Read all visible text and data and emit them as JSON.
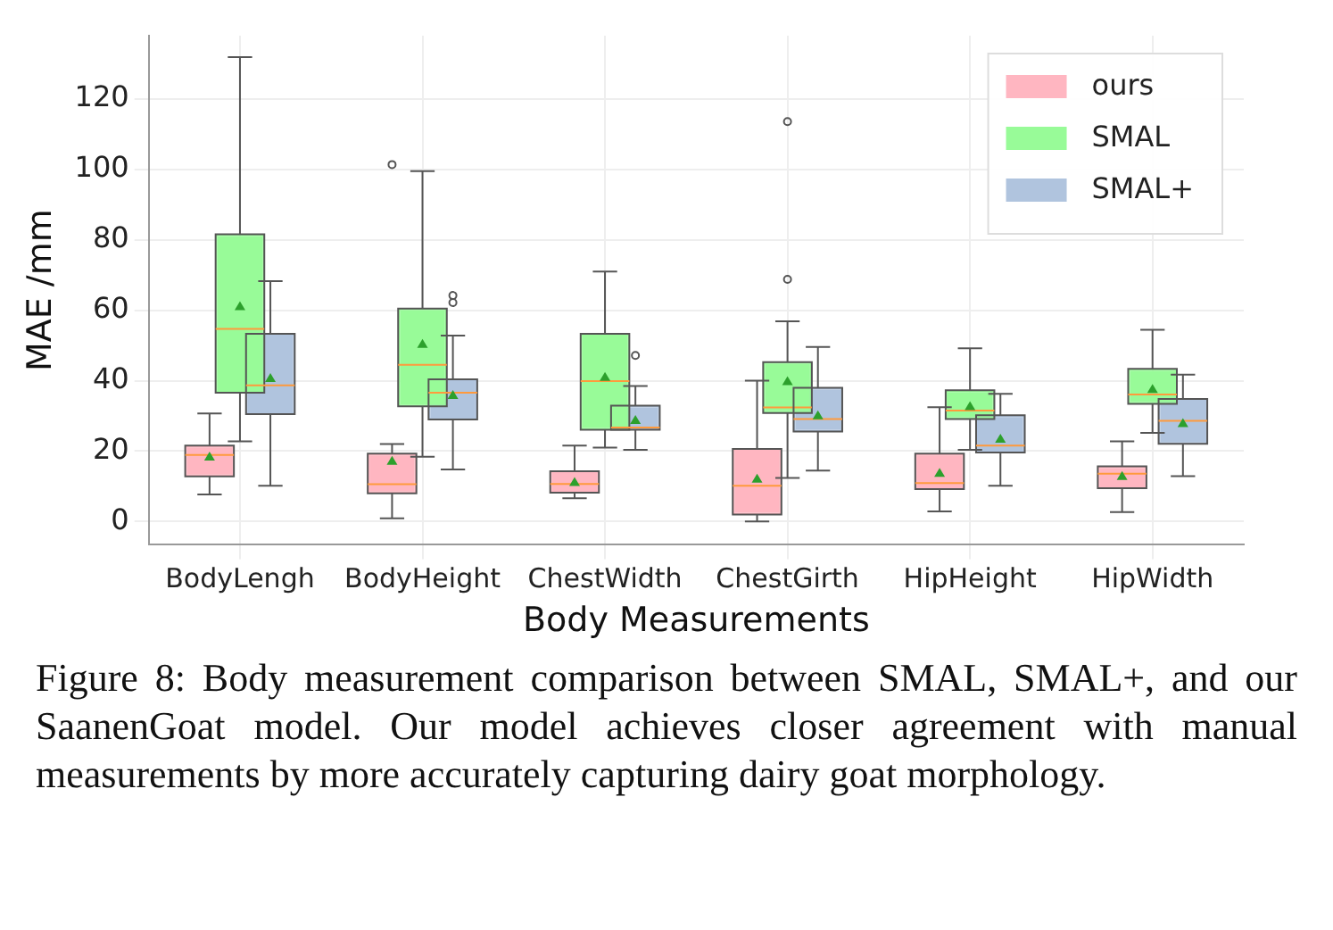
{
  "chart_data": {
    "type": "box",
    "xlabel": "Body Measurements",
    "ylabel": "MAE /mm",
    "categories": [
      "BodyLengh",
      "BodyHeight",
      "ChestWidth",
      "ChestGirth",
      "HipHeight",
      "HipWidth"
    ],
    "ylim": [
      -6.6,
      138
    ],
    "yticks": [
      0,
      20,
      40,
      60,
      80,
      100,
      120
    ],
    "grid": true,
    "legend": "top right",
    "series": [
      {
        "name": "ours",
        "color": "#ffb6c1",
        "boxes": [
          {
            "low": 7.7,
            "q1": 12.8,
            "median": 18.9,
            "q3": 21.6,
            "high": 30.7,
            "mean": 18.6
          },
          {
            "low": 0.9,
            "q1": 8,
            "median": 10.6,
            "q3": 19.3,
            "high": 22,
            "mean": 17.4,
            "outliers": [
              101.4
            ]
          },
          {
            "low": 6.6,
            "q1": 8.2,
            "median": 10.7,
            "q3": 14.3,
            "high": 21.6,
            "mean": 11.4
          },
          {
            "low": 0,
            "q1": 2,
            "median": 10.2,
            "q3": 20.6,
            "high": 40,
            "mean": 12.3
          },
          {
            "low": 2.9,
            "q1": 9.2,
            "median": 10.9,
            "q3": 19.3,
            "high": 32.5,
            "mean": 14
          },
          {
            "low": 2.7,
            "q1": 9.5,
            "median": 13.6,
            "q3": 15.7,
            "high": 22.8,
            "mean": 13.1
          }
        ]
      },
      {
        "name": "SMAL",
        "color": "#98fb98",
        "boxes": [
          {
            "low": 22.8,
            "q1": 36.6,
            "median": 54.7,
            "q3": 81.6,
            "high": 131.9,
            "mean": 61.3
          },
          {
            "low": 18.4,
            "q1": 32.7,
            "median": 44.5,
            "q3": 60.5,
            "high": 99.5,
            "mean": 50.6
          },
          {
            "low": 21,
            "q1": 26.1,
            "median": 39.9,
            "q3": 53.3,
            "high": 71,
            "mean": 41.2
          },
          {
            "low": 12.4,
            "q1": 30.8,
            "median": 32.4,
            "q3": 45.3,
            "high": 56.9,
            "mean": 40,
            "outliers": [
              68.8,
              113.6
            ]
          },
          {
            "low": 20.4,
            "q1": 29.1,
            "median": 31.5,
            "q3": 37.3,
            "high": 49.2,
            "mean": 32.9
          },
          {
            "low": 25.2,
            "q1": 33.4,
            "median": 36.1,
            "q3": 43.4,
            "high": 54.5,
            "mean": 37.8
          }
        ]
      },
      {
        "name": "SMAL+",
        "color": "#b0c4de",
        "boxes": [
          {
            "low": 10.2,
            "q1": 30.5,
            "median": 38.7,
            "q3": 53.3,
            "high": 68.3,
            "mean": 40.9
          },
          {
            "low": 14.8,
            "q1": 29,
            "median": 36.6,
            "q3": 40.4,
            "high": 52.8,
            "mean": 36.1,
            "outliers": [
              62.2,
              64.2
            ]
          },
          {
            "low": 20.4,
            "q1": 26.1,
            "median": 26.7,
            "q3": 32.9,
            "high": 38.5,
            "mean": 29,
            "outliers": [
              47.2
            ]
          },
          {
            "low": 14.5,
            "q1": 25.6,
            "median": 29.1,
            "q3": 38,
            "high": 49.6,
            "mean": 30.3
          },
          {
            "low": 10.2,
            "q1": 19.6,
            "median": 21.6,
            "q3": 30.2,
            "high": 36.3,
            "mean": 23.7
          },
          {
            "low": 12.9,
            "q1": 22.1,
            "median": 28.6,
            "q3": 34.8,
            "high": 41.7,
            "mean": 28.1
          }
        ]
      }
    ],
    "annotations": [
      "Figure 8: Body measurement comparison between SMAL, SMAL+, and our SaanenGoat model. Our model achieves closer agreement with manual measurements by more accurately capturing dairy goat morphology."
    ]
  }
}
